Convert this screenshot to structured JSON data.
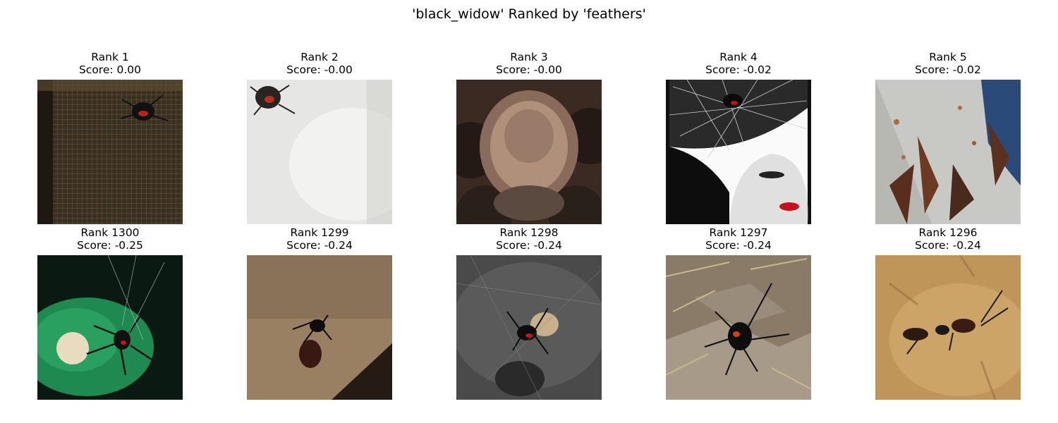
{
  "figure": {
    "title": "'black_widow' Ranked by 'feathers'"
  },
  "top_row": [
    {
      "rank": "Rank 1",
      "score": "Score: 0.00",
      "thumb": "spider-on-mesh"
    },
    {
      "rank": "Rank 2",
      "score": "Score: -0.00",
      "thumb": "spider-on-white"
    },
    {
      "rank": "Rank 3",
      "score": "Score: -0.00",
      "thumb": "tarantula-closeup"
    },
    {
      "rank": "Rank 4",
      "score": "Score: -0.02",
      "thumb": "woman-with-web-art"
    },
    {
      "rank": "Rank 5",
      "score": "Score: -0.02",
      "thumb": "moths-on-web"
    }
  ],
  "bottom_row": [
    {
      "rank": "Rank 1300",
      "score": "Score: -0.25",
      "thumb": "spider-with-egg-sac"
    },
    {
      "rank": "Rank 1299",
      "score": "Score: -0.24",
      "thumb": "spider-on-brown-wall"
    },
    {
      "rank": "Rank 1298",
      "score": "Score: -0.24",
      "thumb": "spider-on-gray"
    },
    {
      "rank": "Rank 1297",
      "score": "Score: -0.24",
      "thumb": "spider-on-rocks"
    },
    {
      "rank": "Rank 1296",
      "score": "Score: -0.24",
      "thumb": "spider-on-sand"
    }
  ]
}
